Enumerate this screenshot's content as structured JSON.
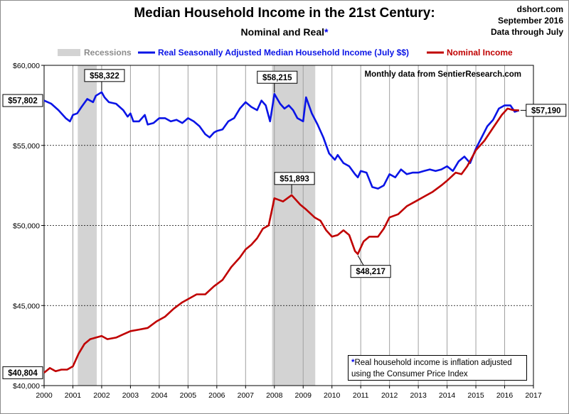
{
  "header": {
    "title": "Median Household Income in the 21st Century:",
    "subtitle_main": "Nominal and Real",
    "subtitle_star": "*",
    "source_lines": [
      "dshort.com",
      "September 2016",
      "Data through July"
    ]
  },
  "colors": {
    "real": "#0a14e6",
    "nominal": "#c00000",
    "recession": "#d3d3d3"
  },
  "chart_data": {
    "type": "line",
    "title": "Median Household Income in the 21st Century:",
    "subtitle": "Nominal and Real*",
    "annotation": "Monthly data from SentierResearch.com",
    "footnote": {
      "star": "*",
      "line1": "Real household  income is inflation adjusted",
      "line2": "using  the Consumer Price Index"
    },
    "xlim": [
      2000,
      2017
    ],
    "ylim": [
      40000,
      60000
    ],
    "x_ticks": [
      "2000",
      "2001",
      "2002",
      "2003",
      "2004",
      "2005",
      "2006",
      "2007",
      "2008",
      "2009",
      "2010",
      "2011",
      "2012",
      "2013",
      "2014",
      "2015",
      "2016",
      "2017"
    ],
    "y_ticks": [
      "$40,000",
      "$45,000",
      "$50,000",
      "$55,000",
      "$60,000"
    ],
    "y_tick_values": [
      40000,
      45000,
      50000,
      55000,
      60000
    ],
    "grid": {
      "vertical": true,
      "horizontal": "dashed"
    },
    "legend": {
      "placement": "top",
      "recessions": "Recessions",
      "real": "Real Seasonally Adjusted Median Household Income (July $$)",
      "nominal": "Nominal Income"
    },
    "recessions": [
      [
        2001.17,
        2001.83
      ],
      [
        2007.92,
        2009.42
      ]
    ],
    "series": [
      {
        "name": "Real Seasonally Adjusted Median Household Income (July $$)",
        "key": "real",
        "points": [
          [
            2000.0,
            57802
          ],
          [
            2000.25,
            57600
          ],
          [
            2000.5,
            57200
          ],
          [
            2000.75,
            56700
          ],
          [
            2000.9,
            56500
          ],
          [
            2001.0,
            56900
          ],
          [
            2001.15,
            57000
          ],
          [
            2001.3,
            57400
          ],
          [
            2001.5,
            57900
          ],
          [
            2001.7,
            57700
          ],
          [
            2001.8,
            58100
          ],
          [
            2002.0,
            58322
          ],
          [
            2002.1,
            58000
          ],
          [
            2002.25,
            57700
          ],
          [
            2002.5,
            57600
          ],
          [
            2002.75,
            57200
          ],
          [
            2002.9,
            56800
          ],
          [
            2003.0,
            57000
          ],
          [
            2003.1,
            56500
          ],
          [
            2003.3,
            56500
          ],
          [
            2003.5,
            56900
          ],
          [
            2003.6,
            56300
          ],
          [
            2003.8,
            56400
          ],
          [
            2004.0,
            56700
          ],
          [
            2004.2,
            56700
          ],
          [
            2004.4,
            56500
          ],
          [
            2004.6,
            56600
          ],
          [
            2004.8,
            56400
          ],
          [
            2005.0,
            56700
          ],
          [
            2005.2,
            56500
          ],
          [
            2005.4,
            56200
          ],
          [
            2005.6,
            55700
          ],
          [
            2005.75,
            55500
          ],
          [
            2005.9,
            55800
          ],
          [
            2006.0,
            55900
          ],
          [
            2006.2,
            56000
          ],
          [
            2006.4,
            56500
          ],
          [
            2006.6,
            56700
          ],
          [
            2006.8,
            57300
          ],
          [
            2007.0,
            57700
          ],
          [
            2007.2,
            57400
          ],
          [
            2007.4,
            57200
          ],
          [
            2007.55,
            57800
          ],
          [
            2007.7,
            57500
          ],
          [
            2007.85,
            56500
          ],
          [
            2008.0,
            58215
          ],
          [
            2008.2,
            57600
          ],
          [
            2008.35,
            57300
          ],
          [
            2008.5,
            57500
          ],
          [
            2008.65,
            57200
          ],
          [
            2008.8,
            56700
          ],
          [
            2009.0,
            56500
          ],
          [
            2009.1,
            58000
          ],
          [
            2009.3,
            57000
          ],
          [
            2009.5,
            56300
          ],
          [
            2009.7,
            55500
          ],
          [
            2009.9,
            54500
          ],
          [
            2010.0,
            54300
          ],
          [
            2010.1,
            54100
          ],
          [
            2010.2,
            54400
          ],
          [
            2010.4,
            53900
          ],
          [
            2010.6,
            53700
          ],
          [
            2010.8,
            53200
          ],
          [
            2010.9,
            53000
          ],
          [
            2011.0,
            53400
          ],
          [
            2011.2,
            53300
          ],
          [
            2011.4,
            52400
          ],
          [
            2011.6,
            52300
          ],
          [
            2011.8,
            52500
          ],
          [
            2012.0,
            53200
          ],
          [
            2012.2,
            53000
          ],
          [
            2012.4,
            53500
          ],
          [
            2012.6,
            53200
          ],
          [
            2012.8,
            53300
          ],
          [
            2013.0,
            53300
          ],
          [
            2013.2,
            53400
          ],
          [
            2013.4,
            53500
          ],
          [
            2013.6,
            53400
          ],
          [
            2013.8,
            53500
          ],
          [
            2014.0,
            53700
          ],
          [
            2014.2,
            53400
          ],
          [
            2014.4,
            54000
          ],
          [
            2014.6,
            54300
          ],
          [
            2014.8,
            53900
          ],
          [
            2015.0,
            54800
          ],
          [
            2015.2,
            55500
          ],
          [
            2015.4,
            56200
          ],
          [
            2015.6,
            56600
          ],
          [
            2015.8,
            57300
          ],
          [
            2016.0,
            57500
          ],
          [
            2016.2,
            57500
          ],
          [
            2016.35,
            57100
          ],
          [
            2016.5,
            57190
          ]
        ]
      },
      {
        "name": "Nominal Income",
        "key": "nominal",
        "points": [
          [
            2000.0,
            40804
          ],
          [
            2000.2,
            41100
          ],
          [
            2000.4,
            40900
          ],
          [
            2000.6,
            41000
          ],
          [
            2000.8,
            41000
          ],
          [
            2001.0,
            41200
          ],
          [
            2001.2,
            42000
          ],
          [
            2001.4,
            42600
          ],
          [
            2001.6,
            42900
          ],
          [
            2001.8,
            43000
          ],
          [
            2002.0,
            43100
          ],
          [
            2002.2,
            42900
          ],
          [
            2002.5,
            43000
          ],
          [
            2002.75,
            43200
          ],
          [
            2003.0,
            43400
          ],
          [
            2003.3,
            43500
          ],
          [
            2003.6,
            43600
          ],
          [
            2003.9,
            44000
          ],
          [
            2004.2,
            44300
          ],
          [
            2004.5,
            44800
          ],
          [
            2004.8,
            45200
          ],
          [
            2005.0,
            45400
          ],
          [
            2005.3,
            45700
          ],
          [
            2005.6,
            45700
          ],
          [
            2005.9,
            46200
          ],
          [
            2006.2,
            46600
          ],
          [
            2006.5,
            47400
          ],
          [
            2006.8,
            48000
          ],
          [
            2007.0,
            48500
          ],
          [
            2007.2,
            48800
          ],
          [
            2007.4,
            49200
          ],
          [
            2007.6,
            49800
          ],
          [
            2007.8,
            50000
          ],
          [
            2008.0,
            51700
          ],
          [
            2008.3,
            51500
          ],
          [
            2008.6,
            51893
          ],
          [
            2008.9,
            51300
          ],
          [
            2009.1,
            51000
          ],
          [
            2009.4,
            50500
          ],
          [
            2009.6,
            50300
          ],
          [
            2009.8,
            49700
          ],
          [
            2010.0,
            49300
          ],
          [
            2010.2,
            49400
          ],
          [
            2010.4,
            49700
          ],
          [
            2010.6,
            49400
          ],
          [
            2010.8,
            48400
          ],
          [
            2010.9,
            48217
          ],
          [
            2011.1,
            49000
          ],
          [
            2011.3,
            49300
          ],
          [
            2011.6,
            49300
          ],
          [
            2011.8,
            49800
          ],
          [
            2012.0,
            50500
          ],
          [
            2012.3,
            50700
          ],
          [
            2012.6,
            51200
          ],
          [
            2012.9,
            51500
          ],
          [
            2013.2,
            51800
          ],
          [
            2013.5,
            52100
          ],
          [
            2013.8,
            52500
          ],
          [
            2014.0,
            52800
          ],
          [
            2014.3,
            53300
          ],
          [
            2014.5,
            53200
          ],
          [
            2014.7,
            53700
          ],
          [
            2015.0,
            54700
          ],
          [
            2015.3,
            55300
          ],
          [
            2015.6,
            56100
          ],
          [
            2015.9,
            56900
          ],
          [
            2016.1,
            57300
          ],
          [
            2016.3,
            57200
          ],
          [
            2016.5,
            57190
          ]
        ]
      }
    ],
    "callouts": [
      {
        "label": "$57,802",
        "series": "real",
        "x": 2000.0,
        "y": 57802,
        "pos": "left"
      },
      {
        "label": "$58,322",
        "series": "real",
        "x": 2002.0,
        "y": 58322,
        "pos": "above"
      },
      {
        "label": "$58,215",
        "series": "real",
        "x": 2008.0,
        "y": 58215,
        "pos": "above"
      },
      {
        "label": "$57,190",
        "series": "real",
        "x": 2016.5,
        "y": 57190,
        "pos": "right"
      },
      {
        "label": "$51,893",
        "series": "nominal",
        "x": 2008.6,
        "y": 51893,
        "pos": "above"
      },
      {
        "label": "$48,217",
        "series": "nominal",
        "x": 2010.9,
        "y": 48217,
        "pos": "below"
      },
      {
        "label": "$40,804",
        "series": "nominal",
        "x": 2000.0,
        "y": 40804,
        "pos": "left"
      }
    ]
  }
}
